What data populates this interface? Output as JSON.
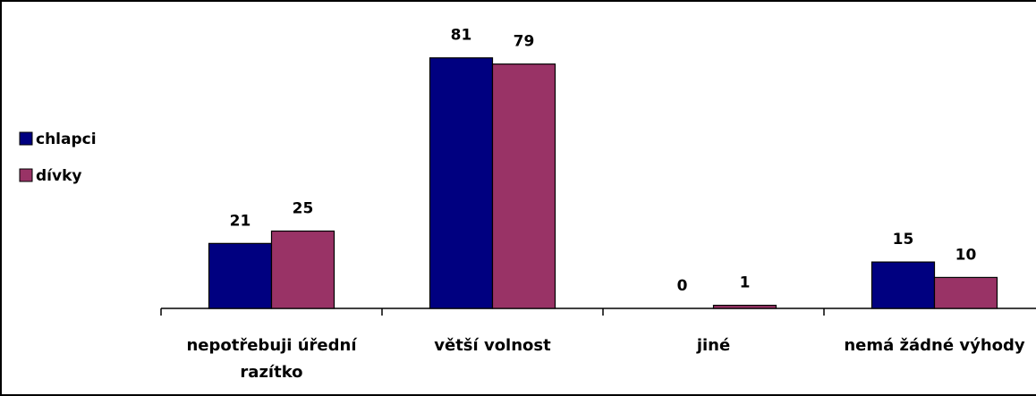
{
  "chart_data": {
    "type": "bar",
    "categories": [
      "nepotřebuji úřední razítko",
      "větší volnost",
      "jiné",
      "nemá žádné výhody"
    ],
    "series": [
      {
        "name": "chlapci",
        "color": "#000080",
        "values": [
          21,
          81,
          0,
          15
        ]
      },
      {
        "name": "dívky",
        "color": "#993366",
        "values": [
          25,
          79,
          1,
          10
        ]
      }
    ],
    "legend": "left"
  }
}
